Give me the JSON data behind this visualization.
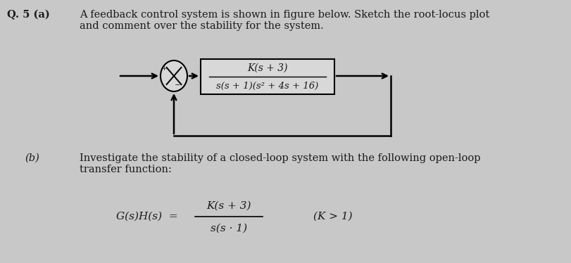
{
  "background_color": "#c8c8c8",
  "q_label": "Q. 5 (a)",
  "q_text_line1": "A feedback control system is shown in figure below. Sketch the root-locus plot",
  "q_text_line2": "and comment over the stability for the system.",
  "b_label": "(b)",
  "b_text_line1": "Investigate the stability of a closed-loop system with the following open-loop",
  "b_text_line2": "transfer function:",
  "transfer_func_num": "K(s + 3)",
  "transfer_func_den": "s(s · 1)",
  "transfer_func_cond": "(K > 1)",
  "gs_label": "G(s)H(s)  =",
  "block_num": "K(s + 3)",
  "block_den": "s(s + 1)(s² + 4s + 16)",
  "font_size_body": 10.5,
  "font_size_label": 11,
  "font_size_block": 10,
  "text_color": "#1a1a1a"
}
